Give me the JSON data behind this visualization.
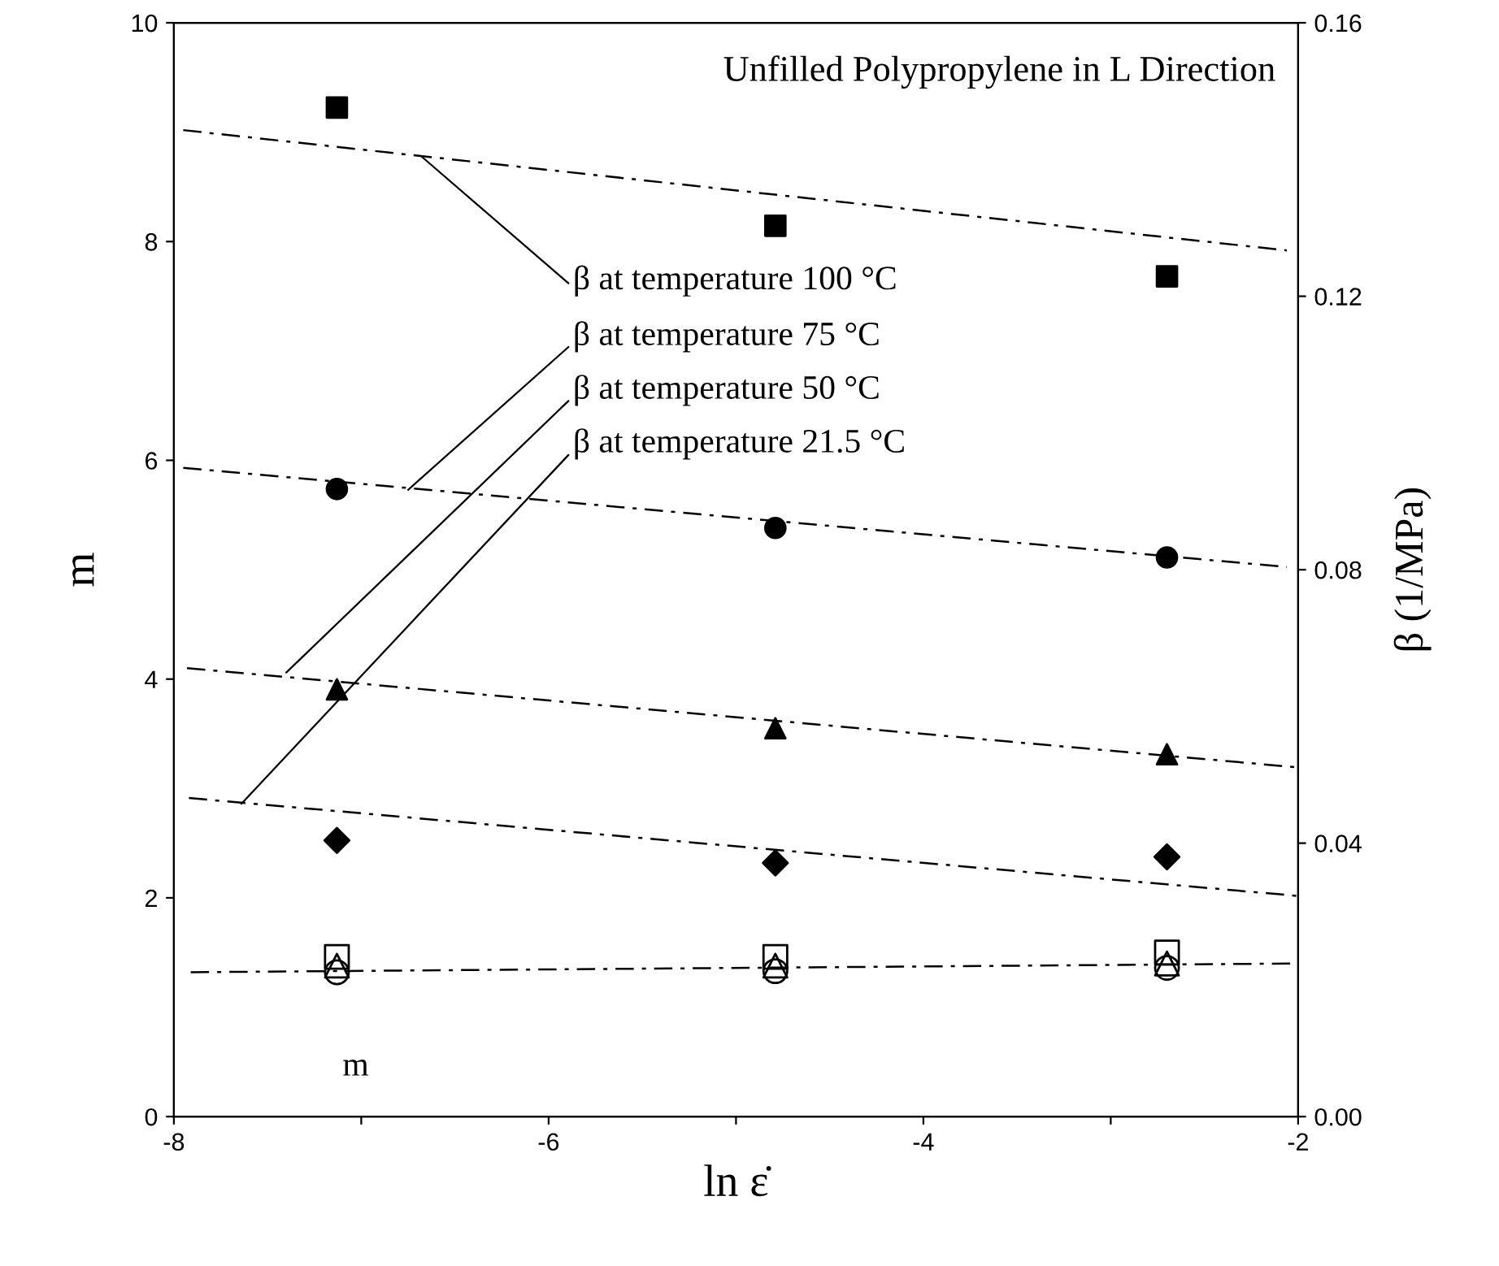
{
  "chart_data": {
    "type": "scatter",
    "title": "Unfilled Polypropylene in L Direction",
    "xlabel": "ln ε̇",
    "ylabel": "m",
    "y2label": "β (1/MPa)",
    "x": [
      -7.13,
      -4.79,
      -2.7
    ],
    "xlim": [
      -8,
      -2
    ],
    "xticks": [
      -8,
      {
        "value": -7,
        "label": null
      },
      -6,
      {
        "value": -5,
        "label": null
      },
      -4,
      {
        "value": -3,
        "label": null
      },
      -2
    ],
    "ylim": [
      0,
      10
    ],
    "yticks": [
      0,
      2,
      4,
      6,
      8,
      10
    ],
    "y2lim": [
      0,
      0.16
    ],
    "y2ticks": [
      {
        "value": 0,
        "label": "0.00"
      },
      {
        "value": 0.04,
        "label": "0.04"
      },
      {
        "value": 0.08,
        "label": "0.08"
      },
      {
        "value": 0.12,
        "label": "0.12"
      },
      {
        "value": 0.16,
        "label": "0.16"
      }
    ],
    "grid": false,
    "legend": false,
    "series": [
      {
        "color": "#000000",
        "marker": "square",
        "axis": "y2",
        "values": [
          0.1476,
          0.1303,
          0.1229
        ]
      },
      {
        "color": "#000000",
        "marker": "circle",
        "axis": "y2",
        "values": [
          0.0918,
          0.0861,
          0.0818
        ]
      },
      {
        "color": "#000000",
        "marker": "triangle",
        "axis": "y2",
        "values": [
          0.0625,
          0.0568,
          0.053
        ]
      },
      {
        "color": "#000000",
        "marker": "diamond",
        "axis": "y2",
        "values": [
          0.0404,
          0.0371,
          0.038
        ]
      },
      {
        "color": "#000000",
        "marker": "square",
        "values": [
          1.46,
          1.46,
          1.5
        ]
      },
      {
        "color": "#000000",
        "marker": "triangle",
        "values": [
          1.38,
          1.38,
          1.4
        ]
      },
      {
        "color": "#000000",
        "marker": "circle",
        "values": [
          1.32,
          1.33,
          1.36
        ]
      },
      {
        "type": "line",
        "color": "#000000",
        "line_style": "dashed",
        "axis": "y2",
        "x": [
          -7.95,
          -2.06
        ],
        "values": [
          0.1443,
          0.1267
        ]
      },
      {
        "type": "line",
        "color": "#000000",
        "line_style": "dashed",
        "axis": "y2",
        "x": [
          -7.95,
          -2.06
        ],
        "values": [
          0.0949,
          0.0804
        ]
      },
      {
        "type": "line",
        "color": "#000000",
        "line_style": "dashed",
        "axis": "y2",
        "x": [
          -7.93,
          -2.01
        ],
        "values": [
          0.0656,
          0.0511
        ]
      },
      {
        "type": "line",
        "color": "#000000",
        "line_style": "dashed",
        "axis": "y2",
        "x": [
          -7.92,
          -2.01
        ],
        "values": [
          0.0466,
          0.0323
        ]
      },
      {
        "type": "line",
        "color": "#000000",
        "line_style": "dashed",
        "x": [
          -7.91,
          -2.01
        ],
        "values": [
          1.32,
          1.4
        ]
      }
    ],
    "annotations": [
      {
        "text": "β at temperature 100 °C",
        "x": -6.68,
        "y": 8.78
      },
      {
        "text": "β at temperature 75 °C",
        "x": -6.75,
        "y": 5.73
      },
      {
        "text": "β at temperature 50 °C",
        "x": -7.4,
        "y": 4.06
      },
      {
        "text": "β at temperature 21.5 °C",
        "x": -7.64,
        "y": 2.86
      },
      "m"
    ]
  }
}
